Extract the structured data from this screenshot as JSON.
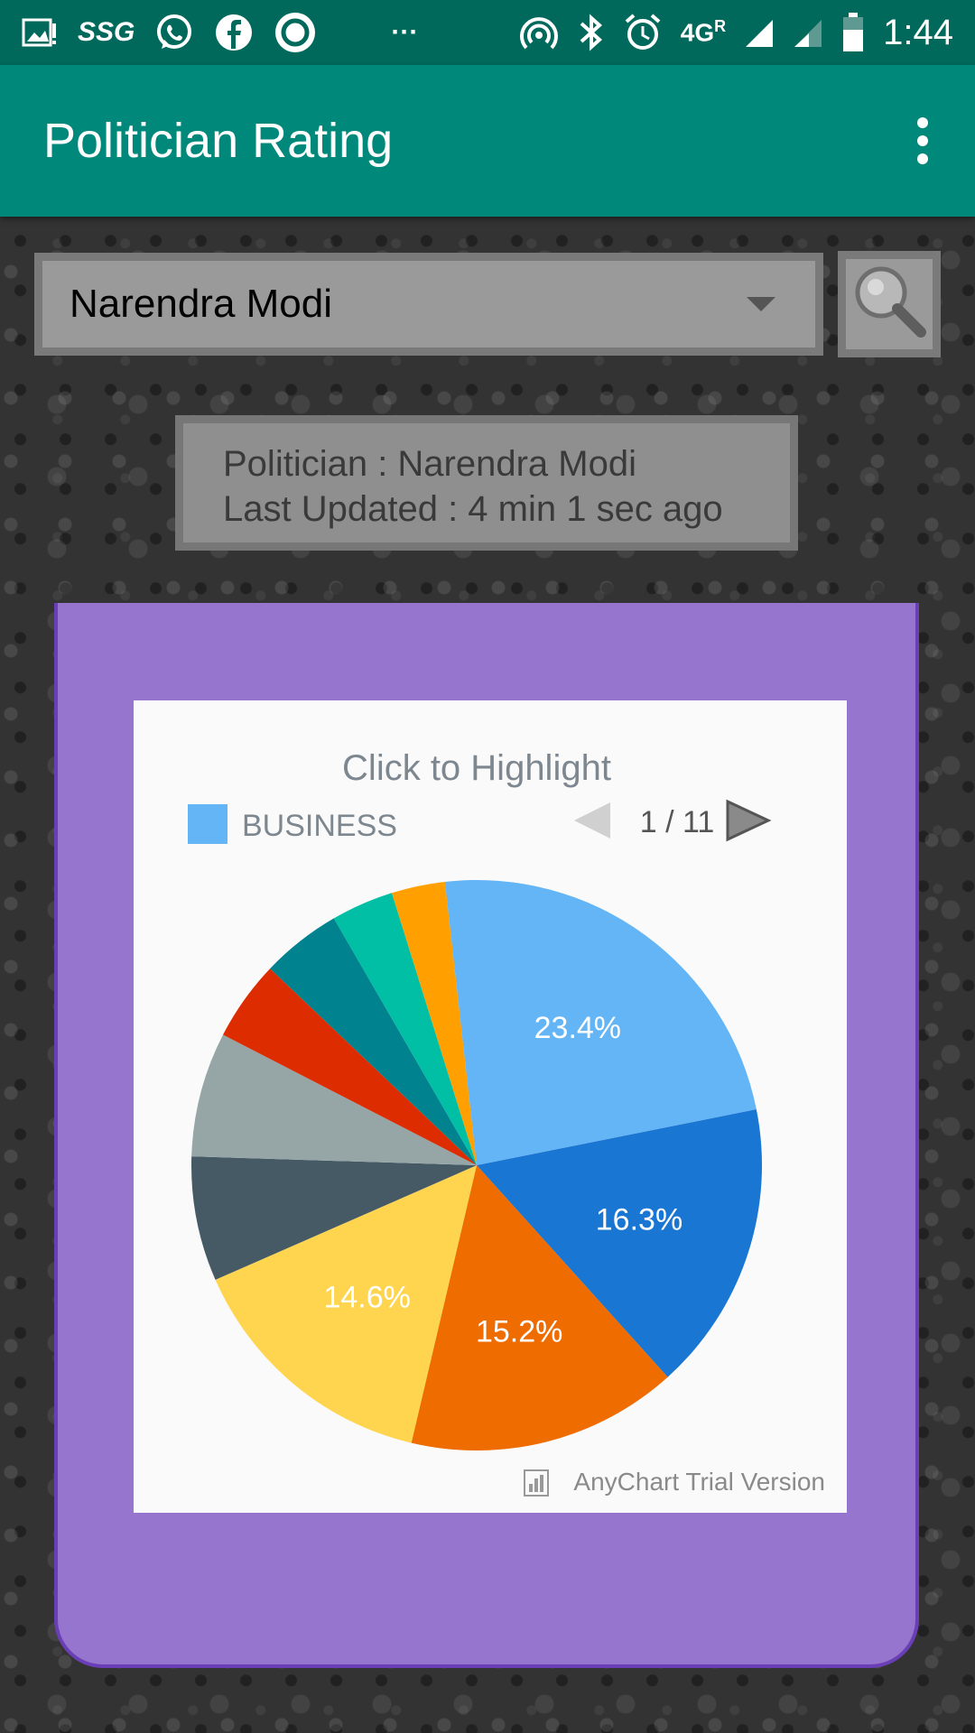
{
  "status_bar": {
    "time": "1:44",
    "network": "4G",
    "roaming": "R",
    "left_icons": [
      "image-alert-icon",
      "ssg-app-icon",
      "whatsapp-icon",
      "facebook-icon",
      "ring-app-icon",
      "more-notifications-icon"
    ],
    "ssg_label": "SSG",
    "more_label": "···"
  },
  "app_bar": {
    "title": "Politician Rating"
  },
  "selector": {
    "selected": "Narendra Modi"
  },
  "info": {
    "politician_line": "Politician : Narendra Modi",
    "updated_line": "Last Updated : 4 min 1 sec ago"
  },
  "colors": {
    "status_bar": "#00695c",
    "app_bar": "#00897b",
    "card": "#9575cd"
  },
  "chart_data": {
    "type": "pie",
    "title": "Click to Highlight",
    "legend": {
      "visible_item": "BUSINESS",
      "visible_item_color": "#64b5f6",
      "page_label": "1 / 11",
      "placement": "top"
    },
    "watermark": "AnyChart Trial Version",
    "slices": [
      {
        "name": "BUSINESS",
        "value": 23.4,
        "label": "23.4%",
        "color": "#64b5f6"
      },
      {
        "name": "",
        "value": 16.3,
        "label": "16.3%",
        "color": "#1976d2"
      },
      {
        "name": "",
        "value": 15.2,
        "label": "15.2%",
        "color": "#ef6c00"
      },
      {
        "name": "",
        "value": 14.6,
        "label": "14.6%",
        "color": "#ffd54f"
      },
      {
        "name": "",
        "value": 7.0,
        "label": "",
        "color": "#455a64"
      },
      {
        "name": "",
        "value": 7.0,
        "label": "",
        "color": "#96a6a6"
      },
      {
        "name": "",
        "value": 4.5,
        "label": "",
        "color": "#dd2c00"
      },
      {
        "name": "",
        "value": 4.5,
        "label": "",
        "color": "#00838f"
      },
      {
        "name": "",
        "value": 3.5,
        "label": "",
        "color": "#00bfa5"
      },
      {
        "name": "",
        "value": 3.0,
        "label": "",
        "color": "#ffa000"
      }
    ]
  }
}
